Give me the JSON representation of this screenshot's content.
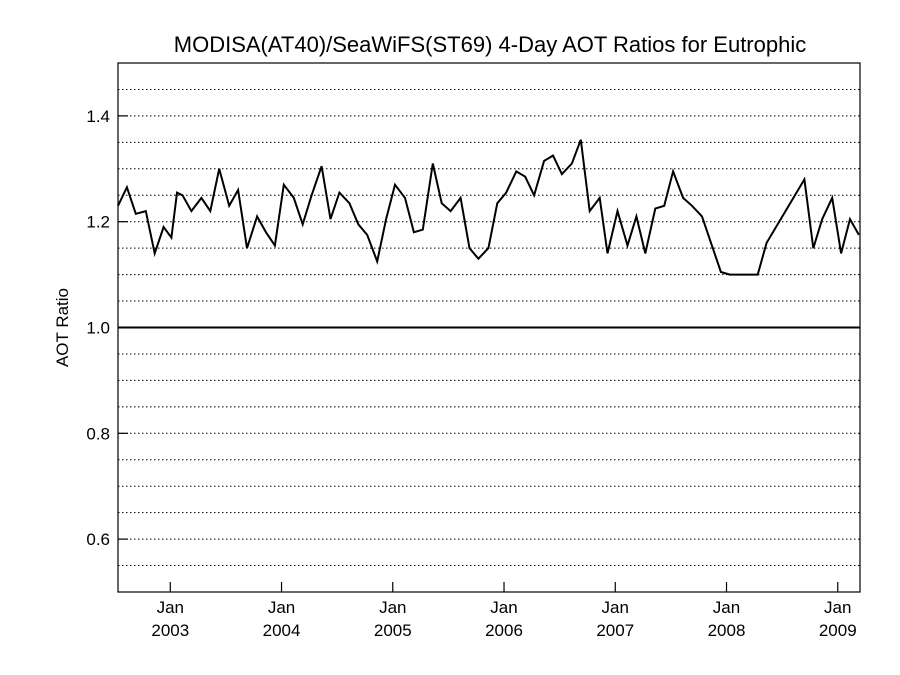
{
  "chart_data": {
    "type": "line",
    "title": "MODISA(AT40)/SeaWiFS(ST69) 4-Day AOT Ratios for Eutrophic",
    "xlabel": "",
    "ylabel": "AOT Ratio",
    "xlim": [
      2002.53,
      2009.2
    ],
    "ylim": [
      0.5,
      1.5
    ],
    "y_ticks": [
      {
        "value": 0.6,
        "label": "0.6"
      },
      {
        "value": 0.8,
        "label": "0.8"
      },
      {
        "value": 1.0,
        "label": "1.0"
      },
      {
        "value": 1.2,
        "label": "1.2"
      },
      {
        "value": 1.4,
        "label": "1.4"
      }
    ],
    "y_gridlines": [
      0.55,
      0.6,
      0.65,
      0.7,
      0.75,
      0.8,
      0.85,
      0.9,
      0.95,
      1.05,
      1.1,
      1.15,
      1.2,
      1.25,
      1.3,
      1.35,
      1.4,
      1.45
    ],
    "reference_line": 1.0,
    "x_ticks": [
      {
        "value": 2003.0,
        "month": "Jan",
        "year": "2003"
      },
      {
        "value": 2004.0,
        "month": "Jan",
        "year": "2004"
      },
      {
        "value": 2005.0,
        "month": "Jan",
        "year": "2005"
      },
      {
        "value": 2006.0,
        "month": "Jan",
        "year": "2006"
      },
      {
        "value": 2007.0,
        "month": "Jan",
        "year": "2007"
      },
      {
        "value": 2008.0,
        "month": "Jan",
        "year": "2008"
      },
      {
        "value": 2009.0,
        "month": "Jan",
        "year": "2009"
      }
    ],
    "series": [
      {
        "x": [
          2002.53,
          2002.61,
          2002.69,
          2002.78,
          2002.86,
          2002.94,
          2003.01,
          2003.06,
          2003.11,
          2003.19,
          2003.28,
          2003.36,
          2003.44,
          2003.53,
          2003.61,
          2003.69,
          2003.78,
          2003.86,
          2003.94,
          2004.02,
          2004.11,
          2004.19,
          2004.27,
          2004.36,
          2004.44,
          2004.52,
          2004.61,
          2004.69,
          2004.77,
          2004.86,
          2004.94,
          2005.02,
          2005.11,
          2005.19,
          2005.27,
          2005.36,
          2005.44,
          2005.52,
          2005.61,
          2005.69,
          2005.77,
          2005.86,
          2005.94,
          2006.02,
          2006.11,
          2006.19,
          2006.27,
          2006.36,
          2006.44,
          2006.52,
          2006.61,
          2006.69,
          2006.77,
          2006.86,
          2006.93,
          2007.02,
          2007.11,
          2007.19,
          2007.27,
          2007.36,
          2007.44,
          2007.52,
          2007.61,
          2007.69,
          2007.78,
          2007.95,
          2008.03,
          2008.28,
          2008.36,
          2008.7,
          2008.78,
          2008.86,
          2008.95,
          2009.03,
          2009.11,
          2009.19
        ],
        "y": [
          1.23,
          1.265,
          1.215,
          1.22,
          1.14,
          1.19,
          1.17,
          1.255,
          1.25,
          1.22,
          1.245,
          1.22,
          1.3,
          1.23,
          1.26,
          1.15,
          1.21,
          1.18,
          1.155,
          1.27,
          1.245,
          1.195,
          1.25,
          1.305,
          1.205,
          1.255,
          1.235,
          1.195,
          1.175,
          1.125,
          1.205,
          1.27,
          1.245,
          1.18,
          1.185,
          1.31,
          1.235,
          1.22,
          1.245,
          1.15,
          1.13,
          1.15,
          1.235,
          1.255,
          1.295,
          1.285,
          1.25,
          1.315,
          1.325,
          1.29,
          1.31,
          1.355,
          1.22,
          1.245,
          1.14,
          1.22,
          1.155,
          1.21,
          1.14,
          1.225,
          1.23,
          1.295,
          1.245,
          1.23,
          1.21,
          1.105,
          1.1,
          1.1,
          1.16,
          1.28,
          1.15,
          1.205,
          1.245,
          1.14,
          1.205,
          1.175
        ]
      }
    ],
    "grid": true,
    "legend": "none"
  }
}
